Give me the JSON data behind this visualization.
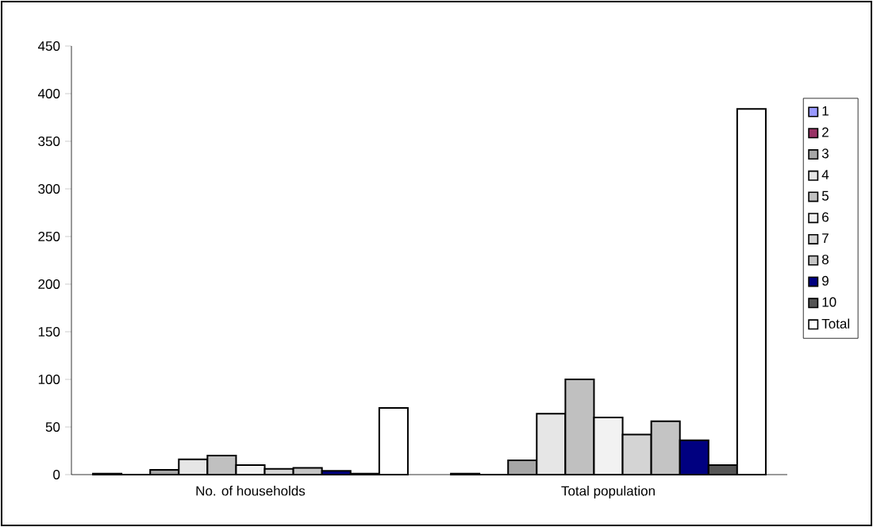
{
  "chart_data": {
    "type": "bar",
    "categories": [
      "No. of households",
      "Total population"
    ],
    "series": [
      {
        "name": "1",
        "color": "#9999ff",
        "values": [
          1,
          1
        ]
      },
      {
        "name": "2",
        "color": "#993366",
        "values": [
          0,
          0
        ]
      },
      {
        "name": "3",
        "color": "#a6a6a6",
        "values": [
          5,
          15
        ]
      },
      {
        "name": "4",
        "color": "#e6e6e6",
        "values": [
          16,
          64
        ]
      },
      {
        "name": "5",
        "color": "#c0c0c0",
        "values": [
          20,
          100
        ]
      },
      {
        "name": "6",
        "color": "#f2f2f2",
        "values": [
          10,
          60
        ]
      },
      {
        "name": "7",
        "color": "#d4d4d4",
        "values": [
          6,
          42
        ]
      },
      {
        "name": "8",
        "color": "#c4c4c4",
        "values": [
          7,
          56
        ]
      },
      {
        "name": "9",
        "color": "#000080",
        "values": [
          4,
          36
        ]
      },
      {
        "name": "10",
        "color": "#555555",
        "values": [
          1,
          10
        ]
      },
      {
        "name": "Total",
        "color": "#ffffff",
        "values": [
          70,
          384
        ]
      }
    ],
    "ylim": [
      0,
      450
    ],
    "yticks": [
      0,
      50,
      100,
      150,
      200,
      250,
      300,
      350,
      400,
      450
    ],
    "legend": "right"
  }
}
